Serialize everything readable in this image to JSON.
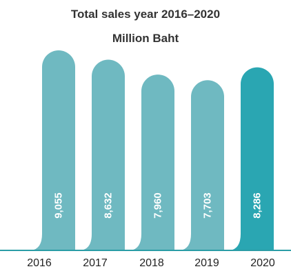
{
  "chart_data": {
    "type": "bar",
    "title": "Total sales year 2016–2020",
    "subtitle": "Million Baht",
    "categories": [
      "2016",
      "2017",
      "2018",
      "2019",
      "2020"
    ],
    "values": [
      9055,
      8632,
      7960,
      7703,
      8286
    ],
    "value_labels": [
      "9,055",
      "8,632",
      "7,960",
      "7,703",
      "8,286"
    ],
    "xlabel": "",
    "ylabel": "",
    "grid": false,
    "legend": "none",
    "colors": {
      "bar": "#6fb9c1",
      "highlight_bar": "#2aa6b2",
      "baseline": "#2a9da6"
    },
    "highlight_index": 4
  }
}
